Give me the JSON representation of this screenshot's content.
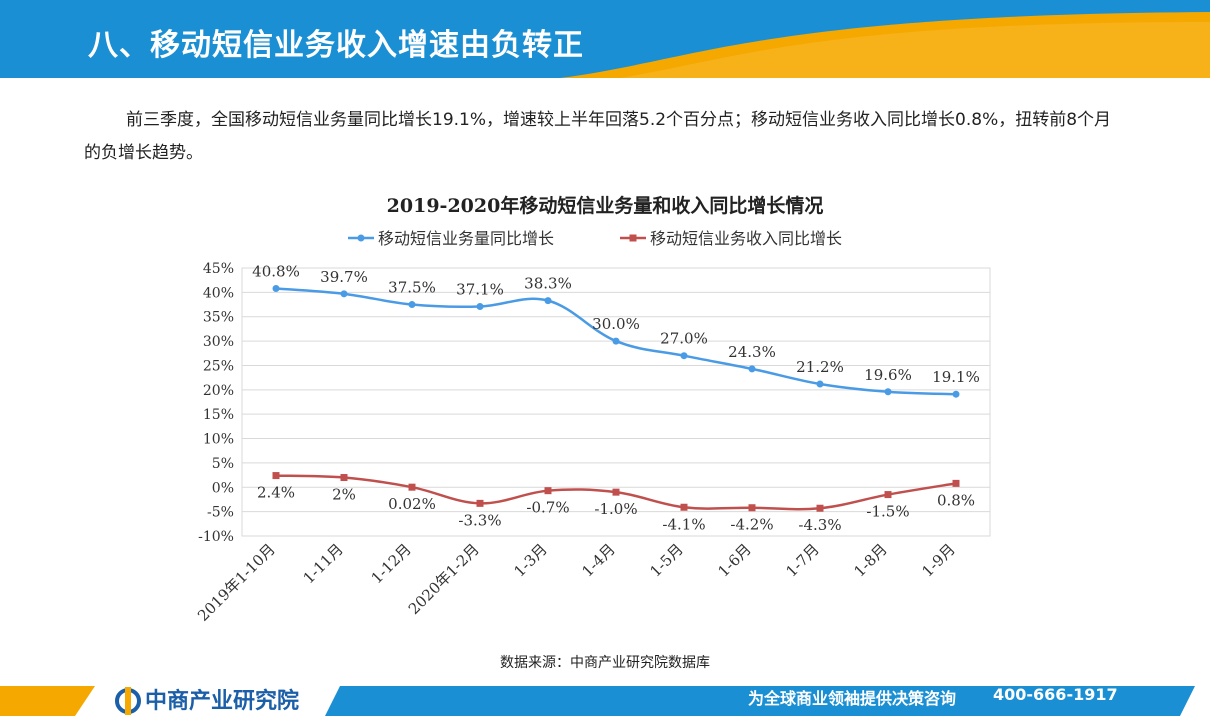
{
  "header": {
    "title": "八、移动短信业务收入增速由负转正"
  },
  "paragraph": "前三季度，全国移动短信业务量同比增长19.1%，增速较上半年回落5.2个百分点；移动短信业务收入同比增长0.8%，扭转前8个月的负增长趋势。",
  "footer": {
    "source": "数据来源：中商产业研究院数据库",
    "logo": "中商产业研究院",
    "slogan": "为全球商业领袖提供决策咨询",
    "phone": "400-666-1917"
  },
  "colors": {
    "header_blue": "#1a8fd3",
    "header_orange": "#f5a800",
    "series1": "#4a9be5",
    "series2": "#c0504d"
  },
  "chart_data": {
    "type": "line",
    "title": "2019-2020年移动短信业务量和收入同比增长情况",
    "categories": [
      "2019年1-10月",
      "1-11月",
      "1-12月",
      "2020年1-2月",
      "1-3月",
      "1-4月",
      "1-5月",
      "1-6月",
      "1-7月",
      "1-8月",
      "1-9月"
    ],
    "ylim": [
      -10,
      45
    ],
    "yticks": [
      "45%",
      "40%",
      "35%",
      "30%",
      "25%",
      "20%",
      "15%",
      "10%",
      "5%",
      "0%",
      "-5%",
      "-10%"
    ],
    "legend_position": "top",
    "grid": "horizontal",
    "series": [
      {
        "name": "移动短信业务量同比增长",
        "values": [
          40.8,
          39.7,
          37.5,
          37.1,
          38.3,
          30.0,
          27.0,
          24.3,
          21.2,
          19.6,
          19.1
        ],
        "labels": [
          "40.8%",
          "39.7%",
          "37.5%",
          "37.1%",
          "38.3%",
          "30.0%",
          "27.0%",
          "24.3%",
          "21.2%",
          "19.6%",
          "19.1%"
        ]
      },
      {
        "name": "移动短信业务收入同比增长",
        "values": [
          2.4,
          2.0,
          0.02,
          -3.3,
          -0.7,
          -1.0,
          -4.1,
          -4.2,
          -4.3,
          -1.5,
          0.8
        ],
        "labels": [
          "2.4%",
          "2%",
          "0.02%",
          "-3.3%",
          "-0.7%",
          "-1.0%",
          "-4.1%",
          "-4.2%",
          "-4.3%",
          "-1.5%",
          "0.8%"
        ]
      }
    ]
  }
}
